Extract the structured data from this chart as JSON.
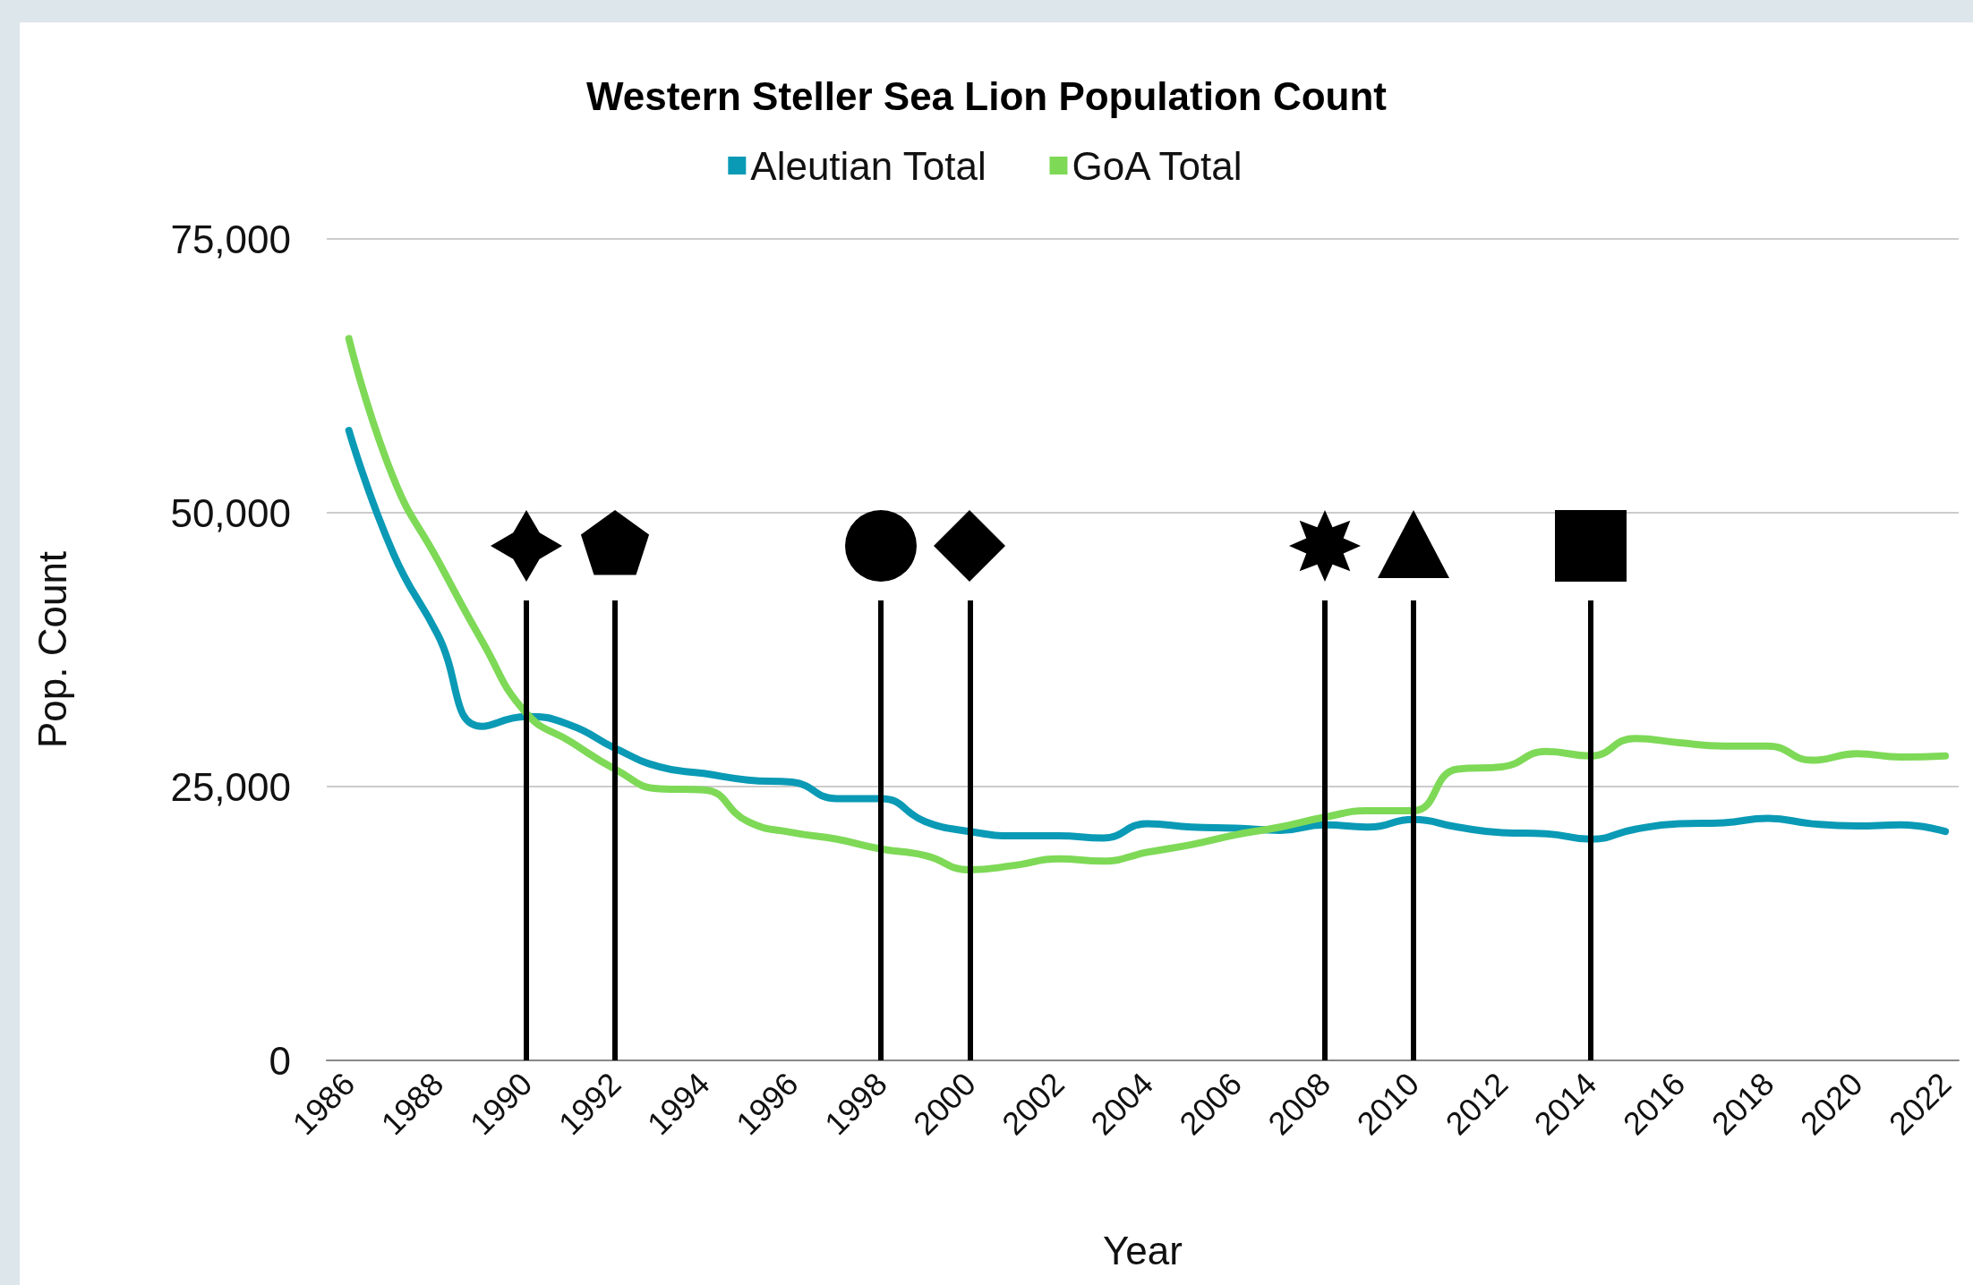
{
  "chart_data": {
    "type": "line",
    "title": "Western Steller Sea Lion Population Count",
    "xlabel": "Year",
    "ylabel": "Pop. Count",
    "x": [
      1986,
      1987,
      1988,
      1989,
      1990,
      1991,
      1992,
      1993,
      1994,
      1995,
      1996,
      1997,
      1998,
      1999,
      2000,
      2001,
      2002,
      2003,
      2004,
      2005,
      2006,
      2007,
      2008,
      2009,
      2010,
      2011,
      2012,
      2013,
      2014,
      2015,
      2016,
      2017,
      2018,
      2019,
      2020,
      2021,
      2022
    ],
    "series": [
      {
        "name": "Aleutian Total",
        "color": "#0a9ab5",
        "values": [
          57500,
          46300,
          38900,
          30500,
          31400,
          30600,
          28500,
          26800,
          26200,
          25600,
          25400,
          23900,
          23900,
          21800,
          20900,
          20500,
          20500,
          20300,
          21600,
          21300,
          21200,
          21000,
          21500,
          21300,
          22000,
          21300,
          20800,
          20700,
          20200,
          21100,
          21600,
          21700,
          22100,
          21600,
          21400,
          21500,
          20900
        ]
      },
      {
        "name": "GoA Total",
        "color": "#7ed957",
        "values": [
          65900,
          53200,
          45700,
          38300,
          31700,
          29100,
          26600,
          24800,
          24700,
          21800,
          20800,
          20200,
          19300,
          18700,
          17400,
          17800,
          18400,
          18200,
          19000,
          19700,
          20600,
          21300,
          22200,
          22800,
          22800,
          26600,
          26800,
          28200,
          27800,
          29400,
          29000,
          28700,
          28700,
          27400,
          28000,
          27700,
          27800
        ]
      }
    ],
    "xlim": [
      1985.5,
      2022.3
    ],
    "xticks": [
      1986,
      1988,
      1990,
      1992,
      1994,
      1996,
      1998,
      2000,
      2002,
      2004,
      2006,
      2008,
      2010,
      2012,
      2014,
      2016,
      2018,
      2020,
      2022
    ],
    "ylim": [
      0,
      75000
    ],
    "yticks": [
      0,
      {
        "value": 25000,
        "label": "25,000"
      },
      {
        "value": 50000,
        "label": "50,000"
      },
      {
        "value": 75000,
        "label": "75,000"
      }
    ],
    "ref_lines": [
      {
        "axis": "x",
        "value": 1990,
        "color": "#000000"
      },
      {
        "axis": "x",
        "value": 1992,
        "color": "#000000"
      },
      {
        "axis": "x",
        "value": 1998,
        "color": "#000000"
      },
      {
        "axis": "x",
        "value": 2000,
        "color": "#000000"
      },
      {
        "axis": "x",
        "value": 2008,
        "color": "#000000"
      },
      {
        "axis": "x",
        "value": 2010,
        "color": "#000000"
      },
      {
        "axis": "x",
        "value": 2014,
        "color": "#000000"
      }
    ],
    "grid": "y",
    "legend": "top",
    "marker": "none",
    "line_style": "solid"
  }
}
